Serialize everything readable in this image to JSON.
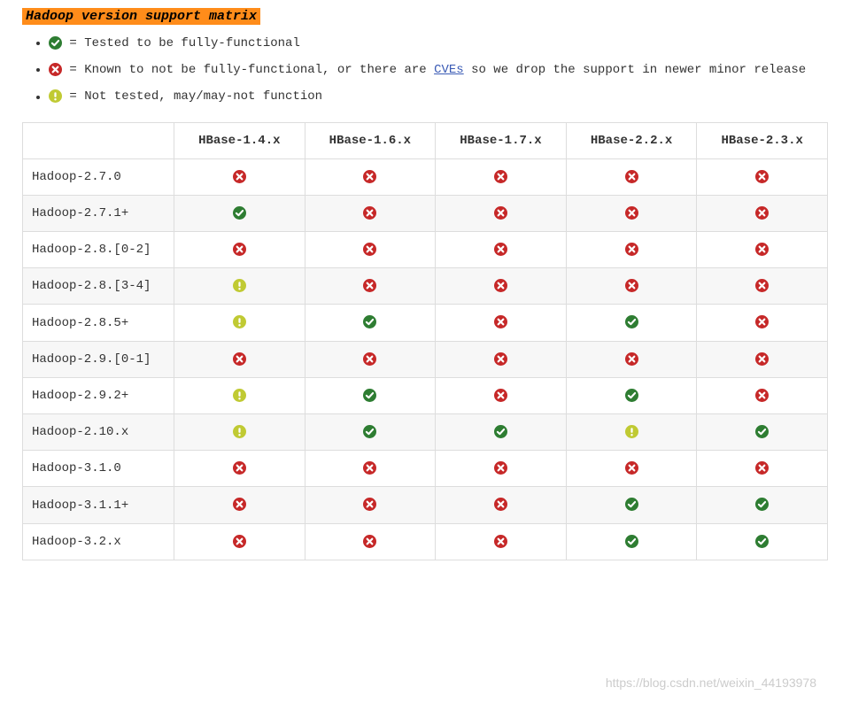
{
  "title": "Hadoop version support matrix",
  "colors": {
    "ok": "#2e7d32",
    "bad": "#c62828",
    "warn": "#c0ca33",
    "title_bg": "#ff8c1a"
  },
  "legend": [
    {
      "icon": "ok",
      "text_before": " = Tested to be fully-functional"
    },
    {
      "icon": "bad",
      "text_before": " = Known to not be fully-functional, or there are ",
      "link_text": "CVEs",
      "text_after": " so we drop the support in newer minor release"
    },
    {
      "icon": "warn",
      "text_before": " = Not tested, may/may-not function"
    }
  ],
  "columns": [
    "",
    "HBase-1.4.x",
    "HBase-1.6.x",
    "HBase-1.7.x",
    "HBase-2.2.x",
    "HBase-2.3.x"
  ],
  "rows": [
    {
      "label": "Hadoop-2.7.0",
      "cells": [
        "bad",
        "bad",
        "bad",
        "bad",
        "bad"
      ]
    },
    {
      "label": "Hadoop-2.7.1+",
      "cells": [
        "ok",
        "bad",
        "bad",
        "bad",
        "bad"
      ]
    },
    {
      "label": "Hadoop-2.8.[0-2]",
      "cells": [
        "bad",
        "bad",
        "bad",
        "bad",
        "bad"
      ]
    },
    {
      "label": "Hadoop-2.8.[3-4]",
      "cells": [
        "warn",
        "bad",
        "bad",
        "bad",
        "bad"
      ]
    },
    {
      "label": "Hadoop-2.8.5+",
      "cells": [
        "warn",
        "ok",
        "bad",
        "ok",
        "bad"
      ]
    },
    {
      "label": "Hadoop-2.9.[0-1]",
      "cells": [
        "bad",
        "bad",
        "bad",
        "bad",
        "bad"
      ]
    },
    {
      "label": "Hadoop-2.9.2+",
      "cells": [
        "warn",
        "ok",
        "bad",
        "ok",
        "bad"
      ]
    },
    {
      "label": "Hadoop-2.10.x",
      "cells": [
        "warn",
        "ok",
        "ok",
        "warn",
        "ok"
      ]
    },
    {
      "label": "Hadoop-3.1.0",
      "cells": [
        "bad",
        "bad",
        "bad",
        "bad",
        "bad"
      ]
    },
    {
      "label": "Hadoop-3.1.1+",
      "cells": [
        "bad",
        "bad",
        "bad",
        "ok",
        "ok"
      ]
    },
    {
      "label": "Hadoop-3.2.x",
      "cells": [
        "bad",
        "bad",
        "bad",
        "ok",
        "ok"
      ]
    }
  ],
  "watermark": "https://blog.csdn.net/weixin_44193978"
}
